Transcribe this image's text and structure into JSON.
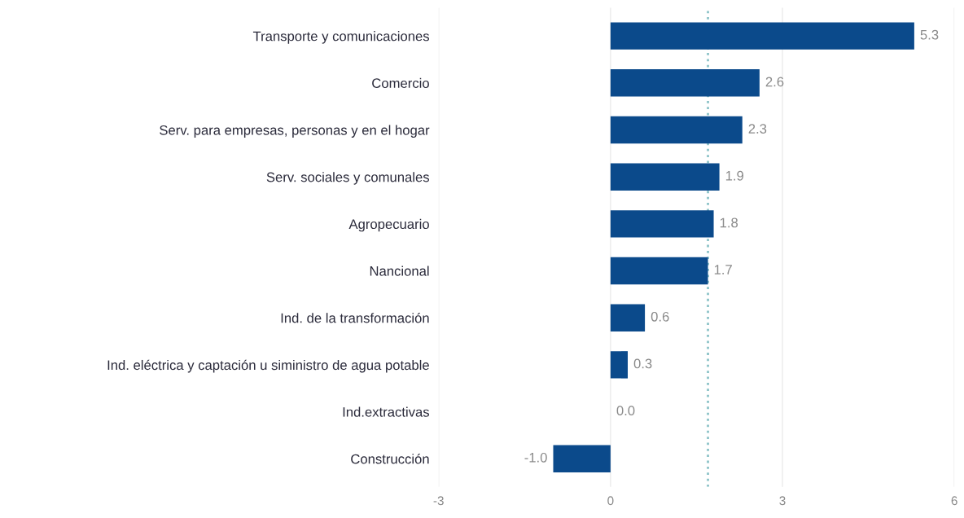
{
  "chart_data": {
    "type": "bar",
    "orientation": "horizontal",
    "categories": [
      "Transporte y comunicaciones",
      "Comercio",
      "Serv. para empresas, personas y en el hogar",
      "Serv. sociales y comunales",
      "Agropecuario",
      "Nancional",
      "Ind. de la transformación",
      "Ind. eléctrica y captación u siministro de agua potable",
      "Ind.extractivas",
      "Construcción"
    ],
    "values": [
      5.3,
      2.6,
      2.3,
      1.9,
      1.8,
      1.7,
      0.6,
      0.3,
      0.0,
      -1.0
    ],
    "value_labels": [
      "5.3",
      "2.6",
      "2.3",
      "1.9",
      "1.8",
      "1.7",
      "0.6",
      "0.3",
      "0.0",
      "-1.0"
    ],
    "color": "#0b4a8b",
    "xlim": [
      -3,
      6
    ],
    "xticks": [
      -3,
      0,
      3,
      6
    ],
    "grid": "x",
    "ref_lines": [
      {
        "axis": "x",
        "value": 1.7,
        "color": "#8cc3c8",
        "line_style": "dotted"
      }
    ]
  }
}
